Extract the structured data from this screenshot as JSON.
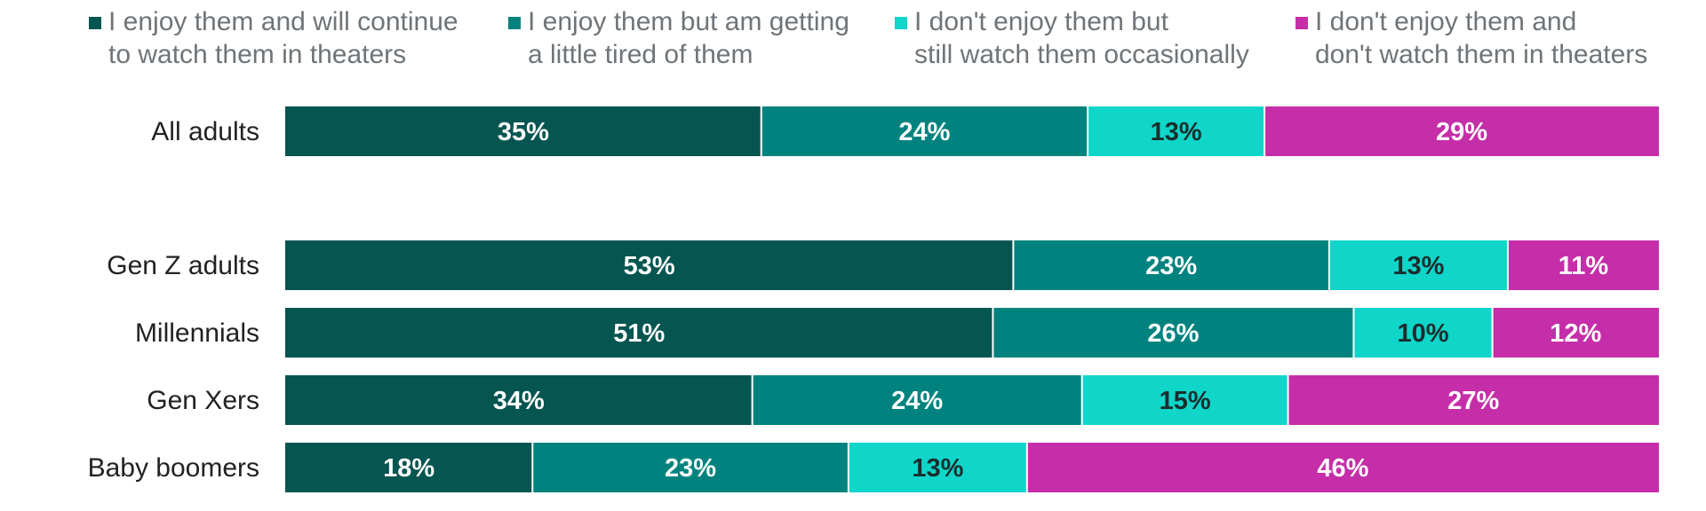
{
  "chart_data": {
    "type": "bar",
    "orientation": "horizontal",
    "stacked": true,
    "value_format": "percent",
    "categories": [
      "All adults",
      "Gen Z adults",
      "Millennials",
      "Gen Xers",
      "Baby boomers"
    ],
    "series": [
      {
        "name": "I enjoy them and will continue\nto watch them in theaters",
        "color": "#055551",
        "label_color": "#ffffff",
        "values": [
          35,
          53,
          51,
          34,
          18
        ]
      },
      {
        "name": "I enjoy them but am getting\na little tired of them",
        "color": "#00837f",
        "label_color": "#ffffff",
        "values": [
          24,
          23,
          26,
          24,
          23
        ]
      },
      {
        "name": "I don't enjoy them but\nstill watch them occasionally",
        "color": "#10d5c9",
        "label_color": "#1a2e2d",
        "values": [
          13,
          13,
          10,
          15,
          13
        ]
      },
      {
        "name": "I don't enjoy them and\ndon't watch them in theaters",
        "color": "#c52ea8",
        "label_color": "#ffffff",
        "values": [
          29,
          11,
          12,
          27,
          46
        ]
      }
    ],
    "legend_position": "top",
    "grid": false
  }
}
